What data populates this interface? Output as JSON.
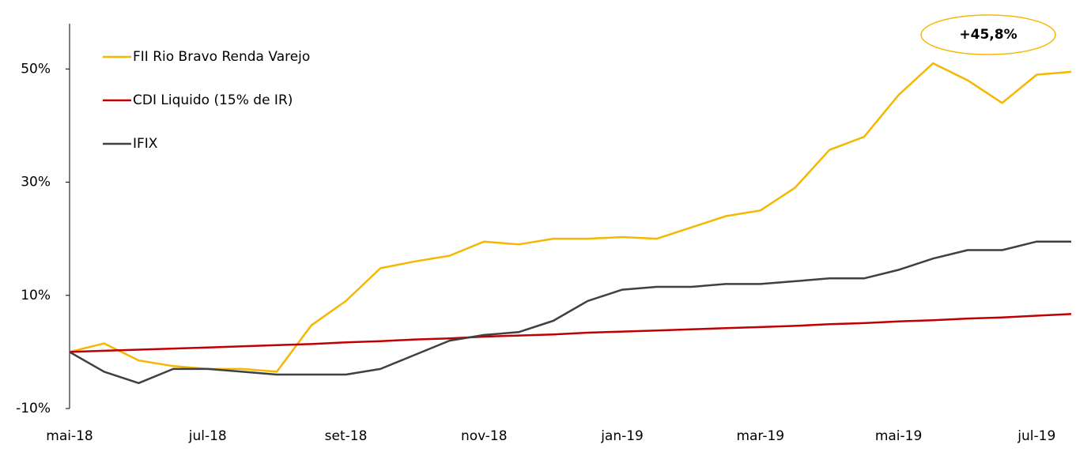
{
  "chart_data": {
    "type": "line",
    "annotation": "+45,8%",
    "categories": [
      "mai-18",
      null,
      null,
      null,
      "jul-18",
      null,
      null,
      null,
      "set-18",
      null,
      null,
      null,
      "nov-18",
      null,
      null,
      null,
      "jan-19",
      null,
      null,
      null,
      "mar-19",
      null,
      null,
      null,
      "mai-19",
      null,
      null,
      null,
      "jul-19",
      null
    ],
    "series": [
      {
        "name": "FII Rio Bravo Renda Varejo",
        "color": "#f5b800",
        "values": [
          0,
          1.5,
          -1.5,
          -2.5,
          -3,
          -3,
          -3.5,
          4.7,
          9,
          14.8,
          16,
          17,
          19.5,
          19,
          20,
          20,
          20.3,
          20,
          22,
          24,
          25,
          29,
          35.7,
          38,
          45.4,
          51,
          48,
          44,
          49,
          49.5
        ]
      },
      {
        "name": "CDI Liquido (15% de IR)",
        "color": "#c00000",
        "values": [
          0,
          0.2,
          0.4,
          0.6,
          0.8,
          1,
          1.2,
          1.4,
          1.7,
          1.9,
          2.2,
          2.4,
          2.7,
          2.9,
          3.1,
          3.4,
          3.6,
          3.8,
          4,
          4.2,
          4.4,
          4.6,
          4.9,
          5.1,
          5.4,
          5.6,
          5.9,
          6.1,
          6.4,
          6.7
        ]
      },
      {
        "name": "IFIX",
        "color": "#404040",
        "values": [
          0,
          -3.5,
          -5.5,
          -3,
          -3,
          -3.5,
          -4,
          -4,
          -4,
          -3,
          -0.5,
          2,
          3,
          3.5,
          5.5,
          9,
          11,
          11.5,
          11.5,
          12,
          12,
          12.5,
          13,
          13,
          14.5,
          16.5,
          18,
          18,
          19.5,
          19.5
        ]
      }
    ],
    "ylim": [
      -10,
      58
    ],
    "yticks": [
      {
        "value": -10,
        "label": "-10%"
      },
      {
        "value": 10,
        "label": "10%"
      },
      {
        "value": 30,
        "label": "30%"
      },
      {
        "value": 50,
        "label": "50%"
      }
    ],
    "legend": "upper left"
  }
}
